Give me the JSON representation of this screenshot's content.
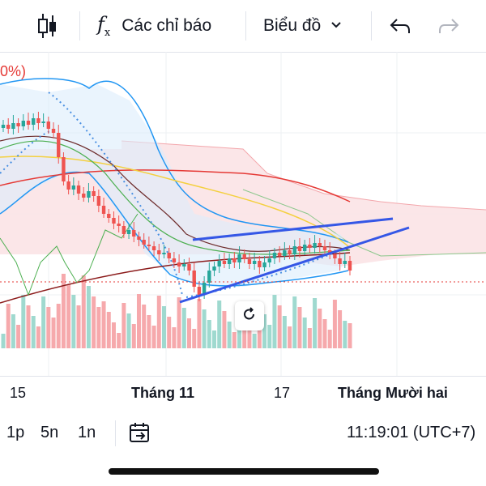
{
  "toolbar": {
    "indicators_label": "Các chỉ báo",
    "chart_type_label": "Biểu đồ",
    "icons": [
      "candlestick-icon",
      "fx-icon",
      "chevron-down-icon",
      "undo-icon",
      "redo-icon"
    ]
  },
  "chart": {
    "partial_label": "0%)",
    "price_line_color": "#e53935",
    "x_ticks": [
      "15",
      "Tháng 11",
      "17",
      "Tháng Mười hai"
    ]
  },
  "bottom": {
    "timeframes": [
      "1p",
      "5n",
      "1n"
    ],
    "time": "11:19:01 (UTC+7)"
  },
  "colors": {
    "up": "#26a69a",
    "down": "#ef5350",
    "bb": "#2196f3",
    "cloud": "#f9d0d3",
    "trend": "#3557e6"
  },
  "chart_data": {
    "type": "candlestick",
    "x_ticks": [
      "15",
      "Tháng 11",
      "17",
      "Tháng Mười hai"
    ],
    "overlays": [
      "bollinger-bands",
      "ichimoku-cloud",
      "moving-averages",
      "trendlines",
      "volume"
    ]
  }
}
